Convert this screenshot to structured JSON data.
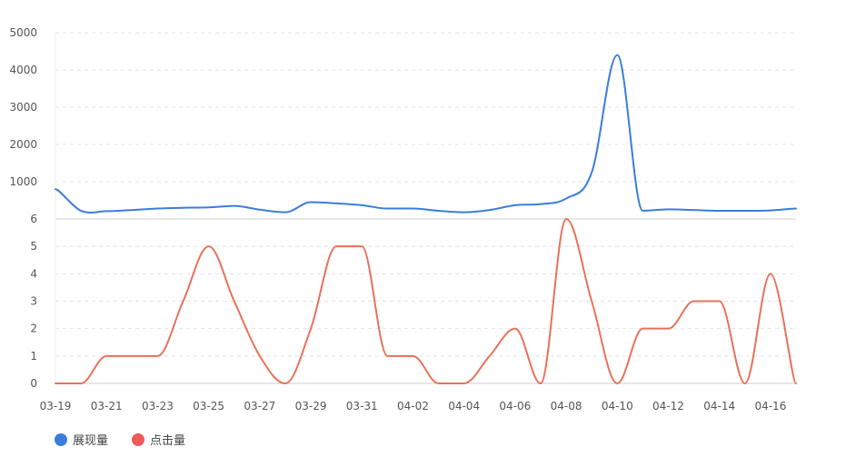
{
  "chart_data": {
    "type": "line",
    "x": [
      "03-19",
      "03-20",
      "03-21",
      "03-22",
      "03-23",
      "03-24",
      "03-25",
      "03-26",
      "03-27",
      "03-28",
      "03-29",
      "03-30",
      "03-31",
      "04-01",
      "04-02",
      "04-03",
      "04-04",
      "04-05",
      "04-06",
      "04-07",
      "04-08",
      "04-09",
      "04-10",
      "04-11",
      "04-12",
      "04-13",
      "04-14",
      "04-15",
      "04-16",
      "04-17"
    ],
    "x_tick_labels": [
      "03-19",
      "03-21",
      "03-23",
      "03-25",
      "03-27",
      "03-29",
      "03-31",
      "04-02",
      "04-04",
      "04-06",
      "04-08",
      "04-10",
      "04-12",
      "04-14",
      "04-16"
    ],
    "panels": [
      {
        "name": "top",
        "ylim": [
          0,
          5000
        ],
        "y_ticks": [
          1000,
          2000,
          3000,
          4000,
          5000
        ],
        "y_tick_labels": [
          "1000",
          "2000",
          "3000",
          "4000",
          "5000"
        ],
        "grid": true
      },
      {
        "name": "bottom",
        "ylim": [
          0,
          6
        ],
        "y_ticks": [
          0,
          1,
          2,
          3,
          4,
          5,
          6
        ],
        "y_tick_labels": [
          "0",
          "1",
          "2",
          "3",
          "4",
          "5",
          "6"
        ],
        "grid": true
      }
    ],
    "series": [
      {
        "name": "展现量",
        "panel": "top",
        "color": "#3b7ddd",
        "values": [
          800,
          220,
          210,
          240,
          280,
          300,
          310,
          350,
          250,
          180,
          450,
          420,
          370,
          280,
          280,
          220,
          180,
          240,
          370,
          400,
          550,
          1250,
          4400,
          220,
          260,
          240,
          220,
          220,
          230,
          280
        ]
      },
      {
        "name": "点击量",
        "panel": "bottom",
        "color": "#e8715a",
        "values": [
          0,
          0,
          1,
          1,
          1,
          3,
          5,
          3,
          1,
          0,
          2,
          5,
          5,
          1,
          1,
          0,
          0,
          1,
          2,
          0,
          6,
          3,
          0,
          2,
          2,
          3,
          3,
          0,
          4,
          0
        ]
      }
    ],
    "legend": [
      {
        "label": "展现量",
        "color": "#3b7ddd"
      },
      {
        "label": "点击量",
        "color": "#ef5a5a"
      }
    ],
    "legend_position": "bottom-left"
  }
}
